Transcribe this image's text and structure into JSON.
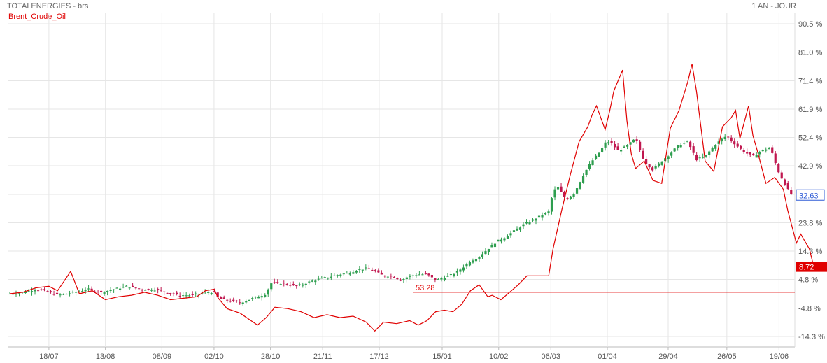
{
  "header": {
    "title": "TOTALENERGIES - brs",
    "period": "1 AN - JOUR"
  },
  "colors": {
    "up_candle": "#2e9e4f",
    "down_candle": "#c0174f",
    "brent_line": "#e00000",
    "grid": "#e6e6e6",
    "last_value_box_border": "#2e5bd6",
    "brent_value_box": "#e00000"
  },
  "chart_data": {
    "type": "line",
    "title": "",
    "legend": [
      "Brent_Crude_Oil"
    ],
    "y_unit": "%",
    "ylim": [
      -19,
      97
    ],
    "y_ticks": [
      "90.5 %",
      "81.0 %",
      "71.4 %",
      "61.9 %",
      "52.4 %",
      "42.9 %",
      "33.3 %",
      "23.8 %",
      "14.3 %",
      "4.8 %",
      "-4.8 %",
      "-14.3 %"
    ],
    "y_tick_values": [
      90.5,
      81.0,
      71.4,
      61.9,
      52.4,
      42.9,
      33.3,
      23.8,
      14.3,
      4.8,
      -4.8,
      -14.3
    ],
    "x_ticks": [
      "18/07",
      "13/08",
      "08/09",
      "02/10",
      "28/10",
      "21/11",
      "17/12",
      "15/01",
      "10/02",
      "06/03",
      "01/04",
      "29/04",
      "26/05",
      "19/06"
    ],
    "x_tick_days": [
      18,
      44,
      70,
      94,
      120,
      144,
      170,
      199,
      225,
      249,
      275,
      303,
      330,
      354
    ],
    "x_range_days": [
      0,
      360
    ],
    "grid": true,
    "series": [
      {
        "name": "TOTALENERGIES",
        "type": "candlestick",
        "last_value": "32.63",
        "points": [
          [
            0,
            0
          ],
          [
            6,
            0.5
          ],
          [
            12,
            1.5
          ],
          [
            18,
            0.5
          ],
          [
            22,
            -0.5
          ],
          [
            30,
            0.5
          ],
          [
            36,
            1.5
          ],
          [
            42,
            0.5
          ],
          [
            48,
            1.5
          ],
          [
            54,
            2.5
          ],
          [
            60,
            1.5
          ],
          [
            66,
            1.5
          ],
          [
            72,
            0.5
          ],
          [
            78,
            -0.5
          ],
          [
            84,
            -0.5
          ],
          [
            90,
            0.5
          ],
          [
            94,
            0.5
          ],
          [
            96,
            -1.5
          ],
          [
            102,
            -2.5
          ],
          [
            106,
            -3
          ],
          [
            110,
            -2
          ],
          [
            114,
            -1
          ],
          [
            118,
            0
          ],
          [
            120,
            3.5
          ],
          [
            126,
            3.5
          ],
          [
            132,
            2.5
          ],
          [
            140,
            4.5
          ],
          [
            146,
            5.5
          ],
          [
            152,
            6.5
          ],
          [
            156,
            7
          ],
          [
            160,
            8
          ],
          [
            164,
            8.5
          ],
          [
            168,
            7.5
          ],
          [
            172,
            6
          ],
          [
            176,
            6
          ],
          [
            180,
            4.5
          ],
          [
            184,
            6
          ],
          [
            188,
            6.5
          ],
          [
            192,
            6.5
          ],
          [
            196,
            4.5
          ],
          [
            200,
            5.5
          ],
          [
            204,
            6.5
          ],
          [
            208,
            8.5
          ],
          [
            212,
            11
          ],
          [
            216,
            12.5
          ],
          [
            220,
            15
          ],
          [
            224,
            17.5
          ],
          [
            228,
            19
          ],
          [
            232,
            21
          ],
          [
            236,
            23
          ],
          [
            240,
            24.5
          ],
          [
            244,
            26
          ],
          [
            248,
            27.5
          ],
          [
            250,
            34
          ],
          [
            252,
            36
          ],
          [
            256,
            31.5
          ],
          [
            260,
            34
          ],
          [
            264,
            40
          ],
          [
            268,
            44.5
          ],
          [
            272,
            48
          ],
          [
            274,
            50.5
          ],
          [
            276,
            51
          ],
          [
            280,
            48
          ],
          [
            284,
            49.5
          ],
          [
            288,
            52
          ],
          [
            292,
            44.5
          ],
          [
            296,
            41.5
          ],
          [
            300,
            44.5
          ],
          [
            304,
            47
          ],
          [
            308,
            50
          ],
          [
            312,
            51
          ],
          [
            316,
            45
          ],
          [
            320,
            46
          ],
          [
            324,
            49.5
          ],
          [
            328,
            52
          ],
          [
            330,
            53
          ],
          [
            334,
            50
          ],
          [
            338,
            47.5
          ],
          [
            342,
            46
          ],
          [
            346,
            48
          ],
          [
            350,
            49
          ],
          [
            352,
            44.5
          ],
          [
            354,
            40.5
          ],
          [
            358,
            35
          ],
          [
            360,
            33
          ]
        ]
      },
      {
        "name": "Brent_Crude_Oil",
        "type": "line",
        "last_value": "8.72",
        "reference_level": "53.28",
        "points": [
          [
            0,
            0
          ],
          [
            6,
            0.5
          ],
          [
            12,
            2
          ],
          [
            18,
            2.5
          ],
          [
            22,
            1
          ],
          [
            28,
            7.5
          ],
          [
            32,
            0
          ],
          [
            38,
            1
          ],
          [
            44,
            -2
          ],
          [
            50,
            -1
          ],
          [
            56,
            -0.5
          ],
          [
            62,
            0.5
          ],
          [
            68,
            -0.5
          ],
          [
            74,
            -2
          ],
          [
            80,
            -1.5
          ],
          [
            86,
            -1
          ],
          [
            90,
            1
          ],
          [
            94,
            1.5
          ],
          [
            96,
            -1.5
          ],
          [
            100,
            -5
          ],
          [
            106,
            -6.5
          ],
          [
            110,
            -8.5
          ],
          [
            114,
            -10.5
          ],
          [
            118,
            -8
          ],
          [
            122,
            -4.5
          ],
          [
            128,
            -5
          ],
          [
            134,
            -6
          ],
          [
            140,
            -8
          ],
          [
            146,
            -7
          ],
          [
            152,
            -8
          ],
          [
            158,
            -7.5
          ],
          [
            164,
            -9.5
          ],
          [
            168,
            -12.5
          ],
          [
            172,
            -9.5
          ],
          [
            178,
            -10
          ],
          [
            184,
            -9
          ],
          [
            188,
            -10.5
          ],
          [
            192,
            -9
          ],
          [
            196,
            -6
          ],
          [
            200,
            -5.5
          ],
          [
            204,
            -6
          ],
          [
            208,
            -3.5
          ],
          [
            212,
            1
          ],
          [
            216,
            3
          ],
          [
            220,
            -1
          ],
          [
            222,
            -0.5
          ],
          [
            226,
            -2
          ],
          [
            230,
            0.5
          ],
          [
            234,
            3
          ],
          [
            238,
            6
          ],
          [
            244,
            6
          ],
          [
            248,
            6
          ],
          [
            250,
            15
          ],
          [
            254,
            28
          ],
          [
            258,
            40
          ],
          [
            262,
            51
          ],
          [
            266,
            56
          ],
          [
            268,
            60
          ],
          [
            270,
            63
          ],
          [
            274,
            55
          ],
          [
            276,
            61
          ],
          [
            278,
            68
          ],
          [
            282,
            75
          ],
          [
            284,
            58
          ],
          [
            286,
            47
          ],
          [
            288,
            42
          ],
          [
            292,
            44.5
          ],
          [
            296,
            38
          ],
          [
            300,
            37
          ],
          [
            304,
            55.5
          ],
          [
            308,
            61.5
          ],
          [
            312,
            71
          ],
          [
            314,
            77
          ],
          [
            316,
            68
          ],
          [
            320,
            44.5
          ],
          [
            324,
            41
          ],
          [
            328,
            56
          ],
          [
            332,
            59
          ],
          [
            334,
            61.5
          ],
          [
            336,
            52
          ],
          [
            340,
            63
          ],
          [
            342,
            53
          ],
          [
            344,
            48
          ],
          [
            348,
            37
          ],
          [
            352,
            39
          ],
          [
            356,
            35
          ],
          [
            358,
            28
          ],
          [
            362,
            17
          ],
          [
            364,
            20
          ],
          [
            368,
            15
          ],
          [
            370,
            9
          ]
        ]
      }
    ]
  }
}
